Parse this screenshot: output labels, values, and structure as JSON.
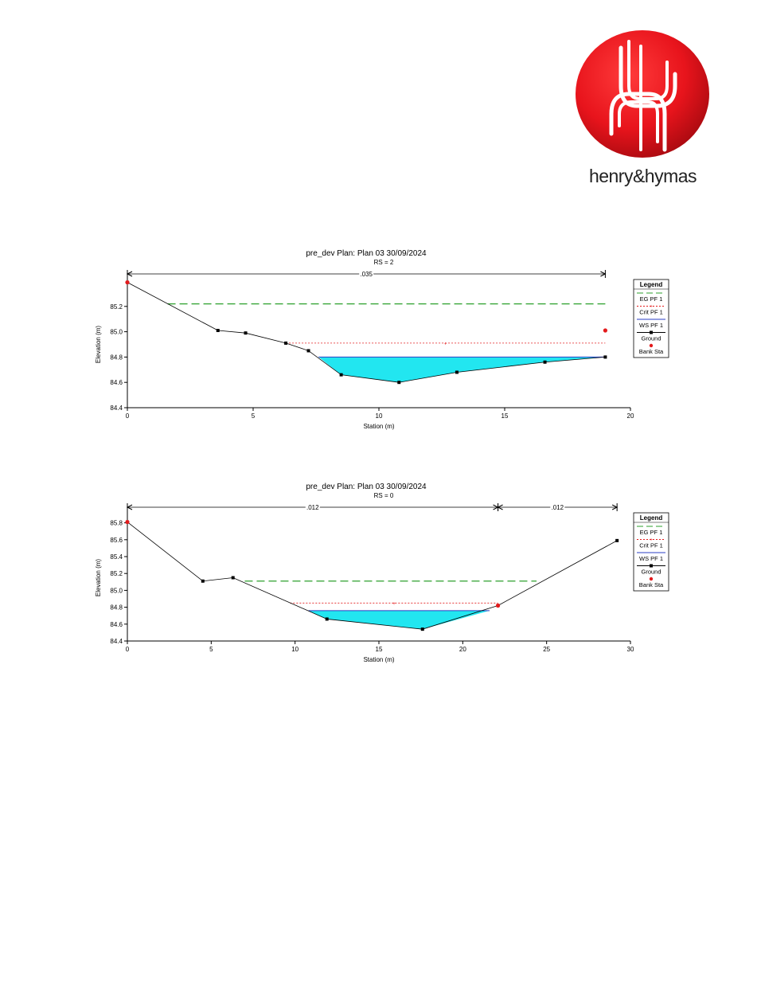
{
  "logo": {
    "text": "henry&hymas",
    "color": "#e8141c"
  },
  "legend": {
    "title": "Legend",
    "items": [
      {
        "label": "EG PF 1",
        "color": "#2ca02c",
        "style": "long-dash"
      },
      {
        "label": "Crit PF 1",
        "color": "#e31a1c",
        "style": "dotted-plus"
      },
      {
        "label": "WS PF 1",
        "color": "#2b3fc4",
        "style": "solid"
      },
      {
        "label": "Ground",
        "color": "#000000",
        "style": "solid-square-markers"
      },
      {
        "label": "Bank Sta",
        "color": "#e31a1c",
        "style": "dot"
      }
    ]
  },
  "chart_data": [
    {
      "type": "line",
      "title": "pre_dev        Plan: Plan 03     30/09/2024",
      "subtitle": "RS = 2",
      "xlabel": "Station (m)",
      "ylabel": "Elevation (m)",
      "xlim": [
        0,
        20
      ],
      "ylim": [
        84.4,
        85.4
      ],
      "xticks": [
        0,
        5,
        10,
        15,
        20
      ],
      "yticks": [
        84.4,
        84.6,
        84.8,
        85.0,
        85.2
      ],
      "grid": false,
      "legend_position": "right",
      "manning": [
        {
          "label": ".035",
          "from": 0,
          "to": 19
        }
      ],
      "ground": {
        "x": [
          0,
          3.6,
          4.7,
          6.3,
          7.2,
          8.5,
          10.8,
          13.1,
          16.6,
          19.0
        ],
        "y": [
          85.39,
          85.01,
          84.99,
          84.91,
          84.85,
          84.66,
          84.6,
          84.68,
          84.76,
          84.8
        ]
      },
      "bank_stations": {
        "x": [
          0,
          19.0
        ],
        "y": [
          85.39,
          85.01
        ]
      },
      "eg": {
        "x": [
          1.6,
          19.0
        ],
        "y": 85.22
      },
      "crit": {
        "x": [
          6.3,
          19.0
        ],
        "y": 84.91
      },
      "ws": {
        "x": [
          7.6,
          19.0
        ],
        "y": 84.8
      }
    },
    {
      "type": "line",
      "title": "pre_dev        Plan: Plan 03     30/09/2024",
      "subtitle": "RS = 0",
      "xlabel": "Station (m)",
      "ylabel": "Elevation (m)",
      "xlim": [
        0,
        30
      ],
      "ylim": [
        84.4,
        85.9
      ],
      "xticks": [
        0,
        5,
        10,
        15,
        20,
        25,
        30
      ],
      "yticks": [
        84.4,
        84.6,
        84.8,
        85.0,
        85.2,
        85.4,
        85.6,
        85.8
      ],
      "grid": false,
      "legend_position": "right",
      "manning": [
        {
          "label": ".012",
          "from": 0,
          "to": 22.1
        },
        {
          "label": ".012",
          "from": 22.1,
          "to": 29.2
        }
      ],
      "ground": {
        "x": [
          0,
          4.5,
          6.3,
          11.9,
          17.6,
          22.1,
          29.2
        ],
        "y": [
          85.81,
          85.11,
          85.15,
          84.66,
          84.54,
          84.82,
          85.59
        ]
      },
      "bank_stations": {
        "x": [
          0,
          22.1
        ],
        "y": [
          85.81,
          84.82
        ]
      },
      "eg": {
        "x": [
          7.0,
          24.4
        ],
        "y": 85.11
      },
      "crit": {
        "x": [
          9.7,
          22.1
        ],
        "y": 84.85
      },
      "ws": {
        "x": [
          10.8,
          21.6
        ],
        "y": 84.76
      }
    }
  ]
}
